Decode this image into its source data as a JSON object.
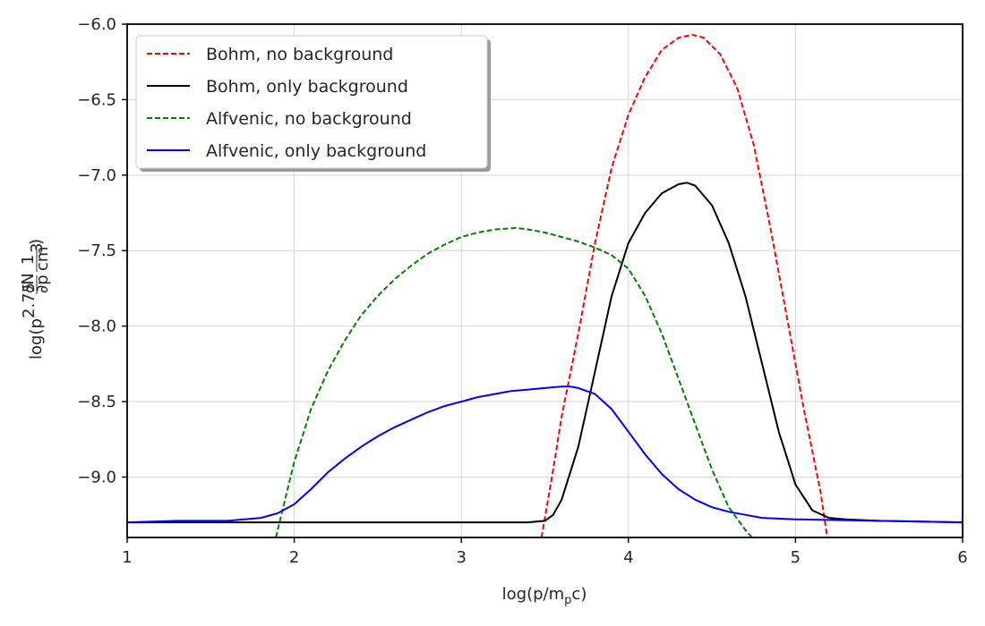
{
  "chart_data": {
    "type": "line",
    "title": "",
    "xlabel_main": "log(p/m",
    "xlabel_sub": "p",
    "xlabel_end": "c)",
    "ylabel_parts": {
      "pre": "log(p",
      "exp": "2.75",
      "d_num": "∂N",
      "d_den": "∂p",
      "f_num": "1",
      "f_den": "cm",
      "f_den_exp": "3",
      "post": ")"
    },
    "xlim": [
      1,
      6
    ],
    "ylim": [
      -9.4,
      -6.0
    ],
    "xticks": [
      1,
      2,
      3,
      4,
      5,
      6
    ],
    "xtick_labels": [
      "1",
      "2",
      "3",
      "4",
      "5",
      "6"
    ],
    "yticks": [
      -9.0,
      -8.5,
      -8.0,
      -7.5,
      -7.0,
      -6.5,
      -6.0
    ],
    "ytick_labels": [
      "−9.0",
      "−8.5",
      "−8.0",
      "−7.5",
      "−7.0",
      "−6.5",
      "−6.0"
    ],
    "grid": true,
    "legend_position": "top-left",
    "series": [
      {
        "name": "Bohm, no background",
        "color": "#ff0000",
        "dash": "dashed",
        "x": [
          3.48,
          3.55,
          3.6,
          3.7,
          3.8,
          3.9,
          4.0,
          4.1,
          4.2,
          4.3,
          4.38,
          4.45,
          4.55,
          4.65,
          4.75,
          4.85,
          4.95,
          5.05,
          5.15,
          5.19
        ],
        "y": [
          -9.4,
          -8.95,
          -8.6,
          -8.05,
          -7.45,
          -6.95,
          -6.6,
          -6.35,
          -6.17,
          -6.09,
          -6.07,
          -6.09,
          -6.2,
          -6.42,
          -6.8,
          -7.35,
          -7.95,
          -8.55,
          -9.1,
          -9.4
        ]
      },
      {
        "name": "Bohm, only background",
        "color": "#000000",
        "dash": "solid",
        "x": [
          1.0,
          2.0,
          3.0,
          3.4,
          3.5,
          3.55,
          3.6,
          3.7,
          3.8,
          3.9,
          4.0,
          4.1,
          4.2,
          4.3,
          4.35,
          4.4,
          4.5,
          4.6,
          4.7,
          4.8,
          4.9,
          5.0,
          5.1,
          5.2,
          5.3,
          5.5,
          6.0
        ],
        "y": [
          -9.3,
          -9.3,
          -9.3,
          -9.3,
          -9.29,
          -9.25,
          -9.15,
          -8.8,
          -8.3,
          -7.8,
          -7.45,
          -7.25,
          -7.12,
          -7.06,
          -7.05,
          -7.07,
          -7.2,
          -7.45,
          -7.8,
          -8.25,
          -8.7,
          -9.05,
          -9.22,
          -9.27,
          -9.28,
          -9.29,
          -9.3
        ]
      },
      {
        "name": "Alfvenic, no background",
        "color": "#008000",
        "dash": "dashed",
        "x": [
          1.89,
          2.0,
          2.1,
          2.2,
          2.3,
          2.4,
          2.5,
          2.6,
          2.7,
          2.8,
          2.9,
          3.0,
          3.1,
          3.2,
          3.33,
          3.4,
          3.5,
          3.6,
          3.7,
          3.8,
          3.9,
          4.0,
          4.1,
          4.2,
          4.3,
          4.4,
          4.5,
          4.6,
          4.7,
          4.74
        ],
        "y": [
          -9.4,
          -8.9,
          -8.55,
          -8.3,
          -8.1,
          -7.93,
          -7.8,
          -7.69,
          -7.6,
          -7.52,
          -7.46,
          -7.41,
          -7.38,
          -7.36,
          -7.35,
          -7.36,
          -7.38,
          -7.41,
          -7.44,
          -7.48,
          -7.53,
          -7.62,
          -7.8,
          -8.05,
          -8.35,
          -8.65,
          -8.95,
          -9.2,
          -9.35,
          -9.4
        ]
      },
      {
        "name": "Alfvenic, only background",
        "color": "#0000ff",
        "dash": "solid",
        "x": [
          1.0,
          1.3,
          1.6,
          1.8,
          1.9,
          2.0,
          2.1,
          2.2,
          2.3,
          2.4,
          2.5,
          2.6,
          2.7,
          2.8,
          2.9,
          3.0,
          3.1,
          3.2,
          3.3,
          3.4,
          3.5,
          3.6,
          3.65,
          3.7,
          3.8,
          3.9,
          4.0,
          4.1,
          4.2,
          4.3,
          4.4,
          4.5,
          4.6,
          4.7,
          4.8,
          5.0,
          5.5,
          6.0
        ],
        "y": [
          -9.3,
          -9.29,
          -9.29,
          -9.27,
          -9.24,
          -9.18,
          -9.08,
          -8.97,
          -8.88,
          -8.8,
          -8.73,
          -8.67,
          -8.62,
          -8.57,
          -8.53,
          -8.5,
          -8.47,
          -8.45,
          -8.43,
          -8.42,
          -8.41,
          -8.4,
          -8.4,
          -8.41,
          -8.45,
          -8.55,
          -8.7,
          -8.85,
          -8.98,
          -9.08,
          -9.15,
          -9.2,
          -9.23,
          -9.25,
          -9.27,
          -9.28,
          -9.29,
          -9.3
        ]
      }
    ]
  }
}
